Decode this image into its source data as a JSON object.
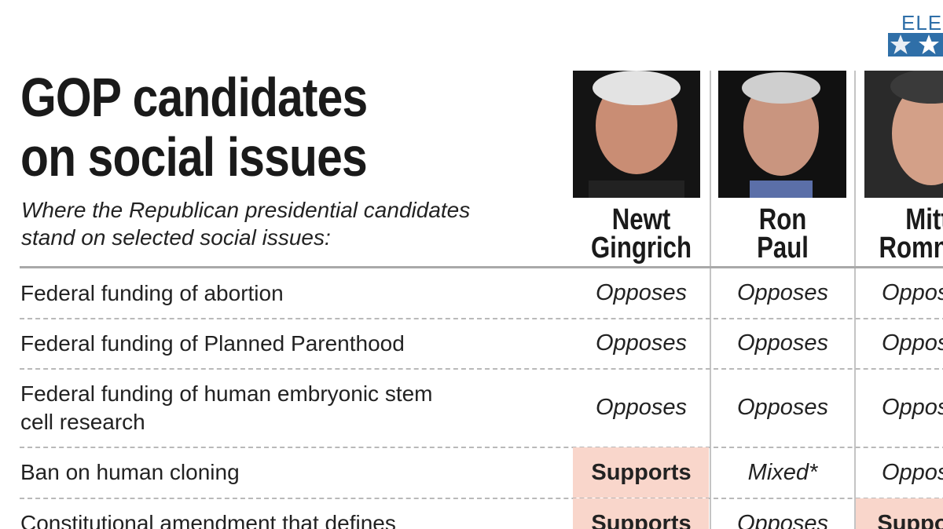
{
  "logo": "ELEC",
  "header": {
    "title_lines": [
      "GOP candidates",
      "on social issues"
    ],
    "subtitle_lines": [
      "Where the Republican presidential candidates",
      "stand on selected social issues:"
    ]
  },
  "candidates": [
    [
      "Newt",
      "Gingrich"
    ],
    [
      "Ron",
      "Paul"
    ],
    [
      "Mitt",
      "Romney"
    ]
  ],
  "table": {
    "rows": [
      {
        "issue": [
          "Federal funding of abortion"
        ],
        "cells": [
          {
            "text": "Opposes"
          },
          {
            "text": "Opposes"
          },
          {
            "text": "Opposes"
          }
        ]
      },
      {
        "issue": [
          "Federal funding of Planned Parenthood"
        ],
        "cells": [
          {
            "text": "Opposes"
          },
          {
            "text": "Opposes"
          },
          {
            "text": "Opposes"
          }
        ]
      },
      {
        "issue": [
          "Federal funding of human embryonic stem",
          "cell research"
        ],
        "cells": [
          {
            "text": "Opposes"
          },
          {
            "text": "Opposes"
          },
          {
            "text": "Opposes"
          }
        ]
      },
      {
        "issue": [
          "Ban on human cloning"
        ],
        "cells": [
          {
            "text": "Supports",
            "highlight": true
          },
          {
            "text": "Mixed*"
          },
          {
            "text": "Opposes"
          }
        ]
      },
      {
        "issue": [
          "Constitutional amendment that defines"
        ],
        "cells": [
          {
            "text": "Supports",
            "highlight": true
          },
          {
            "text": "Opposes"
          },
          {
            "text": "Supports",
            "highlight": true
          }
        ]
      }
    ]
  }
}
